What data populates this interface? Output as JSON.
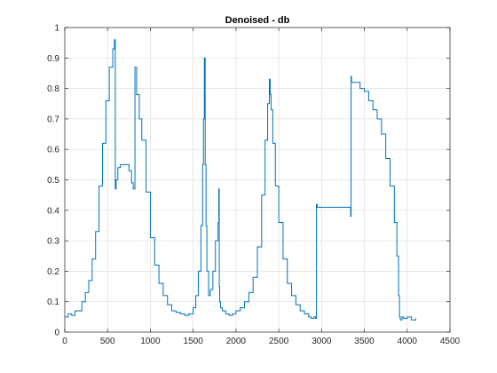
{
  "chart_data": {
    "type": "line",
    "title": "Denoised - db",
    "xlabel": "",
    "ylabel": "",
    "xlim": [
      0,
      4500
    ],
    "ylim": [
      0,
      1
    ],
    "xticks": [
      0,
      500,
      1000,
      1500,
      2000,
      2500,
      3000,
      3500,
      4000,
      4500
    ],
    "yticks": [
      0,
      0.1,
      0.2,
      0.3,
      0.4,
      0.5,
      0.6,
      0.7,
      0.8,
      0.9,
      1
    ],
    "grid": true,
    "line_color": "#0072BD",
    "series": [
      {
        "x": [
          0,
          40,
          80,
          120,
          160,
          200,
          240,
          280,
          320,
          360,
          400,
          440,
          480,
          520,
          560,
          580,
          590,
          600,
          620,
          650,
          700,
          750,
          780,
          800,
          820,
          840,
          870,
          900,
          950,
          1000,
          1050,
          1100,
          1150,
          1200,
          1250,
          1300,
          1350,
          1400,
          1450,
          1500,
          1530,
          1560,
          1590,
          1610,
          1620,
          1630,
          1640,
          1650,
          1660,
          1680,
          1700,
          1730,
          1760,
          1790,
          1800,
          1805,
          1810,
          1820,
          1840,
          1880,
          1920,
          1960,
          2000,
          2050,
          2100,
          2150,
          2200,
          2250,
          2300,
          2340,
          2370,
          2390,
          2400,
          2410,
          2430,
          2460,
          2500,
          2550,
          2600,
          2650,
          2700,
          2750,
          2800,
          2850,
          2880,
          2910,
          2930,
          2940,
          2950,
          3000,
          3050,
          3100,
          3150,
          3200,
          3250,
          3300,
          3330,
          3340,
          3345,
          3350,
          3400,
          3450,
          3500,
          3550,
          3600,
          3650,
          3700,
          3750,
          3800,
          3850,
          3880,
          3900,
          3910,
          3920,
          3940,
          3960,
          4000,
          4050,
          4100
        ],
        "values": [
          0.05,
          0.06,
          0.055,
          0.07,
          0.07,
          0.1,
          0.13,
          0.17,
          0.24,
          0.33,
          0.48,
          0.62,
          0.76,
          0.87,
          0.93,
          0.96,
          0.47,
          0.5,
          0.54,
          0.55,
          0.55,
          0.53,
          0.49,
          0.47,
          0.87,
          0.78,
          0.7,
          0.63,
          0.46,
          0.31,
          0.22,
          0.16,
          0.12,
          0.09,
          0.07,
          0.065,
          0.06,
          0.055,
          0.06,
          0.08,
          0.12,
          0.2,
          0.35,
          0.55,
          0.7,
          0.9,
          0.55,
          0.35,
          0.2,
          0.12,
          0.14,
          0.2,
          0.3,
          0.36,
          0.47,
          0.15,
          0.1,
          0.08,
          0.07,
          0.06,
          0.055,
          0.06,
          0.07,
          0.08,
          0.1,
          0.13,
          0.18,
          0.28,
          0.45,
          0.63,
          0.75,
          0.83,
          0.78,
          0.73,
          0.62,
          0.48,
          0.36,
          0.24,
          0.16,
          0.12,
          0.09,
          0.07,
          0.06,
          0.05,
          0.045,
          0.05,
          0.045,
          0.42,
          0.41,
          0.41,
          0.41,
          0.41,
          0.41,
          0.41,
          0.41,
          0.41,
          0.41,
          0.38,
          0.84,
          0.82,
          0.82,
          0.8,
          0.79,
          0.76,
          0.73,
          0.7,
          0.65,
          0.57,
          0.48,
          0.36,
          0.25,
          0.12,
          0.05,
          0.04,
          0.05,
          0.045,
          0.05,
          0.04,
          0.045
        ]
      }
    ]
  }
}
